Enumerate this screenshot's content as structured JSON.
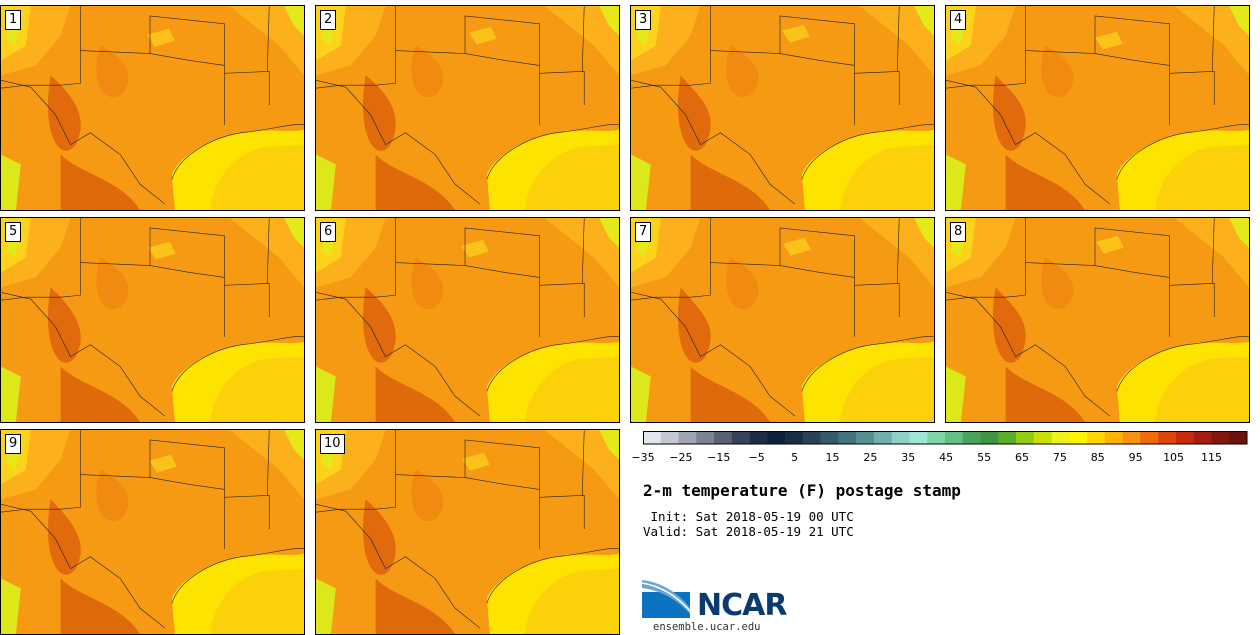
{
  "title": "2-m temperature (F) postage stamp",
  "init_line": " Init: Sat 2018-05-19 00 UTC",
  "valid_line": "Valid: Sat 2018-05-19 21 UTC",
  "logo": {
    "name": "NCAR",
    "url": "ensemble.ucar.edu"
  },
  "members": [
    "1",
    "2",
    "3",
    "4",
    "5",
    "6",
    "7",
    "8",
    "9",
    "10"
  ],
  "colorbar": {
    "ticks": [
      "−35",
      "−25",
      "−15",
      "−5",
      "5",
      "15",
      "25",
      "35",
      "45",
      "55",
      "65",
      "75",
      "85",
      "95",
      "105",
      "115"
    ],
    "colors": [
      "#e3e6ee",
      "#c4c8d2",
      "#9ea4b0",
      "#7b8291",
      "#5a6272",
      "#38435a",
      "#1f2c44",
      "#10203a",
      "#1a2d45",
      "#284258",
      "#355a6c",
      "#44727f",
      "#579092",
      "#6fb0aa",
      "#8fd0c4",
      "#9ee6d5",
      "#7fd5a8",
      "#62c085",
      "#4aa35d",
      "#40963f",
      "#5cae27",
      "#94cc12",
      "#c7e00a",
      "#eef21a",
      "#fff500",
      "#ffd400",
      "#fcb400",
      "#f79210",
      "#f06a0a",
      "#e0450c",
      "#c92a0e",
      "#a61c10",
      "#85160e",
      "#6a130e"
    ]
  },
  "colors": {
    "gulf": "#fce400",
    "gulf_inner": "#fdd10a",
    "land": "#f59a12"
  }
}
